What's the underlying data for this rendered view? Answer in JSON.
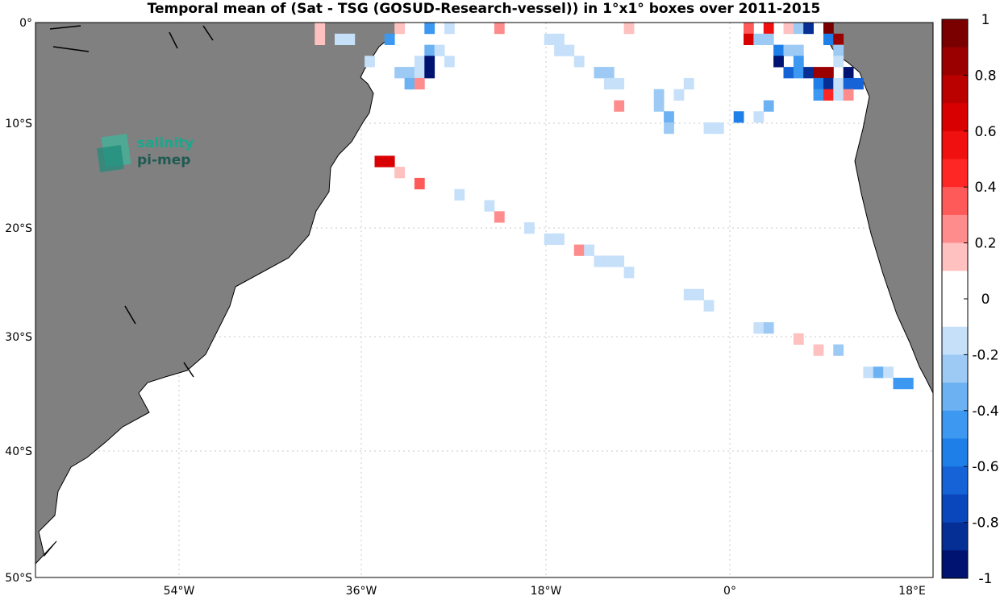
{
  "title": "Temporal mean of (Sat - TSG (GOSUD-Research-vessel)) in 1°x1° boxes over 2011-2015",
  "logo": {
    "line1": "salinity",
    "line2": "pi-mep"
  },
  "colors": {
    "land": "#808080",
    "coast": "#000000",
    "grid": "#c8c8c8",
    "ocean": "#ffffff"
  },
  "colorbar": {
    "ticks": [
      "1",
      "0.8",
      "0.6",
      "0.4",
      "0.2",
      "0",
      "-0.2",
      "-0.4",
      "-0.6",
      "-0.8",
      "-1"
    ],
    "range": [
      -1,
      1
    ],
    "levels": 20,
    "colors_top_to_bottom": [
      "#7a0000",
      "#9b0000",
      "#bb0000",
      "#d80000",
      "#f01010",
      "#ff2626",
      "#ff5a5a",
      "#ff8c8c",
      "#ffc0c0",
      "#ffffff",
      "#ffffff",
      "#c6e0fa",
      "#9ccaf5",
      "#6cb2f2",
      "#3c98f0",
      "#1e7fe8",
      "#1563d6",
      "#0a47bd",
      "#062f96",
      "#001370"
    ]
  },
  "chart_data": {
    "type": "heatmap",
    "title": "Temporal mean of (Sat - TSG (GOSUD-Research-vessel)) in 1°x1° boxes over 2011-2015",
    "x_ticks": [
      "54°W",
      "36°W",
      "18°W",
      "0°",
      "18°E"
    ],
    "y_ticks": [
      "0°",
      "10°S",
      "20°S",
      "30°S",
      "40°S",
      "50°S"
    ],
    "xlim": [
      -71,
      19
    ],
    "ylim": [
      -50,
      0
    ],
    "grid": true,
    "cell_size_deg": 1,
    "value_range": [
      -1,
      1
    ],
    "cells": [
      {
        "lon": -43,
        "lat": -0.5,
        "v": 0.15
      },
      {
        "lon": -35,
        "lat": -0.5,
        "v": 0.15
      },
      {
        "lon": -32,
        "lat": -0.5,
        "v": -0.5
      },
      {
        "lon": -30,
        "lat": -0.5,
        "v": -0.15
      },
      {
        "lon": -25,
        "lat": -0.5,
        "v": 0.25
      },
      {
        "lon": -12,
        "lat": -0.5,
        "v": 0.15
      },
      {
        "lon": 0,
        "lat": -0.5,
        "v": 0.3
      },
      {
        "lon": 2,
        "lat": -0.5,
        "v": 0.5
      },
      {
        "lon": 4,
        "lat": -0.5,
        "v": 0.15
      },
      {
        "lon": 5,
        "lat": -0.5,
        "v": -0.3
      },
      {
        "lon": 6,
        "lat": -0.5,
        "v": -0.8
      },
      {
        "lon": 8,
        "lat": -0.5,
        "v": 0.9
      },
      {
        "lon": -43,
        "lat": -1.5,
        "v": 0.15
      },
      {
        "lon": -41,
        "lat": -1.5,
        "v": -0.15
      },
      {
        "lon": -40,
        "lat": -1.5,
        "v": -0.15
      },
      {
        "lon": -36,
        "lat": -1.5,
        "v": -0.5
      },
      {
        "lon": -20,
        "lat": -1.5,
        "v": -0.15
      },
      {
        "lon": -19,
        "lat": -1.5,
        "v": -0.15
      },
      {
        "lon": 0,
        "lat": -1.5,
        "v": 0.6
      },
      {
        "lon": 1,
        "lat": -1.5,
        "v": -0.3
      },
      {
        "lon": 2,
        "lat": -1.5,
        "v": -0.3
      },
      {
        "lon": 8,
        "lat": -1.5,
        "v": -0.6
      },
      {
        "lon": 9,
        "lat": -1.5,
        "v": 0.8
      },
      {
        "lon": -32,
        "lat": -2.5,
        "v": -0.4
      },
      {
        "lon": -31,
        "lat": -2.5,
        "v": -0.15
      },
      {
        "lon": -19,
        "lat": -2.5,
        "v": -0.15
      },
      {
        "lon": -18,
        "lat": -2.5,
        "v": -0.2
      },
      {
        "lon": 3,
        "lat": -2.5,
        "v": -0.6
      },
      {
        "lon": 4,
        "lat": -2.5,
        "v": -0.25
      },
      {
        "lon": 5,
        "lat": -2.5,
        "v": -0.25
      },
      {
        "lon": 9,
        "lat": -2.5,
        "v": -0.3
      },
      {
        "lon": -38,
        "lat": -3.5,
        "v": -0.15
      },
      {
        "lon": -33,
        "lat": -3.5,
        "v": -0.2
      },
      {
        "lon": -32,
        "lat": -3.5,
        "v": -0.9
      },
      {
        "lon": -30,
        "lat": -3.5,
        "v": -0.15
      },
      {
        "lon": -17,
        "lat": -3.5,
        "v": -0.15
      },
      {
        "lon": 3,
        "lat": -3.5,
        "v": -1.0
      },
      {
        "lon": 5,
        "lat": -3.5,
        "v": -0.5
      },
      {
        "lon": 9,
        "lat": -3.5,
        "v": -0.2
      },
      {
        "lon": -35,
        "lat": -4.5,
        "v": -0.25
      },
      {
        "lon": -34,
        "lat": -4.5,
        "v": -0.25
      },
      {
        "lon": -33,
        "lat": -4.5,
        "v": -0.2
      },
      {
        "lon": -32,
        "lat": -4.5,
        "v": -1.0
      },
      {
        "lon": -15,
        "lat": -4.5,
        "v": -0.3
      },
      {
        "lon": -14,
        "lat": -4.5,
        "v": -0.3
      },
      {
        "lon": 4,
        "lat": -4.5,
        "v": -0.7
      },
      {
        "lon": 5,
        "lat": -4.5,
        "v": -0.5
      },
      {
        "lon": 6,
        "lat": -4.5,
        "v": -0.8
      },
      {
        "lon": 7,
        "lat": -4.5,
        "v": 0.8
      },
      {
        "lon": 8,
        "lat": -4.5,
        "v": 0.8
      },
      {
        "lon": 10,
        "lat": -4.5,
        "v": -0.9
      },
      {
        "lon": -34,
        "lat": -5.5,
        "v": -0.4
      },
      {
        "lon": -33,
        "lat": -5.5,
        "v": 0.2
      },
      {
        "lon": -14,
        "lat": -5.5,
        "v": -0.15
      },
      {
        "lon": -13,
        "lat": -5.5,
        "v": -0.15
      },
      {
        "lon": -6,
        "lat": -5.5,
        "v": -0.15
      },
      {
        "lon": 7,
        "lat": -5.5,
        "v": -0.6
      },
      {
        "lon": 8,
        "lat": -5.5,
        "v": -0.8
      },
      {
        "lon": 9,
        "lat": -5.5,
        "v": -0.2
      },
      {
        "lon": 10,
        "lat": -5.5,
        "v": -0.7
      },
      {
        "lon": 11,
        "lat": -5.5,
        "v": -0.7
      },
      {
        "lon": -9,
        "lat": -6.5,
        "v": -0.3
      },
      {
        "lon": -7,
        "lat": -6.5,
        "v": -0.15
      },
      {
        "lon": 7,
        "lat": -6.5,
        "v": -0.5
      },
      {
        "lon": 8,
        "lat": -6.5,
        "v": 0.4
      },
      {
        "lon": 9,
        "lat": -6.5,
        "v": -0.15
      },
      {
        "lon": 10,
        "lat": -6.5,
        "v": 0.2
      },
      {
        "lon": -13,
        "lat": -7.5,
        "v": 0.2
      },
      {
        "lon": -9,
        "lat": -7.5,
        "v": -0.3
      },
      {
        "lon": 2,
        "lat": -7.5,
        "v": -0.4
      },
      {
        "lon": -8,
        "lat": -8.5,
        "v": -0.4
      },
      {
        "lon": -1,
        "lat": -8.5,
        "v": -0.6
      },
      {
        "lon": 1,
        "lat": -8.5,
        "v": -0.15
      },
      {
        "lon": -8,
        "lat": -9.5,
        "v": -0.25
      },
      {
        "lon": -4,
        "lat": -9.5,
        "v": -0.15
      },
      {
        "lon": -3,
        "lat": -9.5,
        "v": -0.15
      },
      {
        "lon": -37,
        "lat": -12.5,
        "v": 0.65
      },
      {
        "lon": -36,
        "lat": -12.5,
        "v": 0.65
      },
      {
        "lon": -35,
        "lat": -13.5,
        "v": 0.15
      },
      {
        "lon": -33,
        "lat": -14.5,
        "v": 0.3
      },
      {
        "lon": -29,
        "lat": -15.5,
        "v": -0.15
      },
      {
        "lon": -26,
        "lat": -16.5,
        "v": -0.15
      },
      {
        "lon": -25,
        "lat": -17.5,
        "v": 0.2
      },
      {
        "lon": -22,
        "lat": -18.5,
        "v": -0.15
      },
      {
        "lon": -20,
        "lat": -19.5,
        "v": -0.15
      },
      {
        "lon": -19,
        "lat": -19.5,
        "v": -0.15
      },
      {
        "lon": -17,
        "lat": -20.5,
        "v": 0.2
      },
      {
        "lon": -16,
        "lat": -20.5,
        "v": -0.15
      },
      {
        "lon": -15,
        "lat": -21.5,
        "v": -0.15
      },
      {
        "lon": -14,
        "lat": -21.5,
        "v": -0.15
      },
      {
        "lon": -13,
        "lat": -21.5,
        "v": -0.15
      },
      {
        "lon": -12,
        "lat": -22.5,
        "v": -0.15
      },
      {
        "lon": -6,
        "lat": -24.5,
        "v": -0.15
      },
      {
        "lon": -5,
        "lat": -24.5,
        "v": -0.15
      },
      {
        "lon": -4,
        "lat": -25.5,
        "v": -0.15
      },
      {
        "lon": 1,
        "lat": -27.5,
        "v": -0.15
      },
      {
        "lon": 2,
        "lat": -27.5,
        "v": -0.3
      },
      {
        "lon": 5,
        "lat": -28.5,
        "v": 0.15
      },
      {
        "lon": 7,
        "lat": -29.5,
        "v": 0.15
      },
      {
        "lon": 9,
        "lat": -29.5,
        "v": -0.25
      },
      {
        "lon": 12,
        "lat": -31.5,
        "v": -0.15
      },
      {
        "lon": 13,
        "lat": -31.5,
        "v": -0.4
      },
      {
        "lon": 14,
        "lat": -31.5,
        "v": -0.2
      },
      {
        "lon": 15,
        "lat": -32.5,
        "v": -0.5
      },
      {
        "lon": 16,
        "lat": -32.5,
        "v": -0.5
      }
    ]
  }
}
